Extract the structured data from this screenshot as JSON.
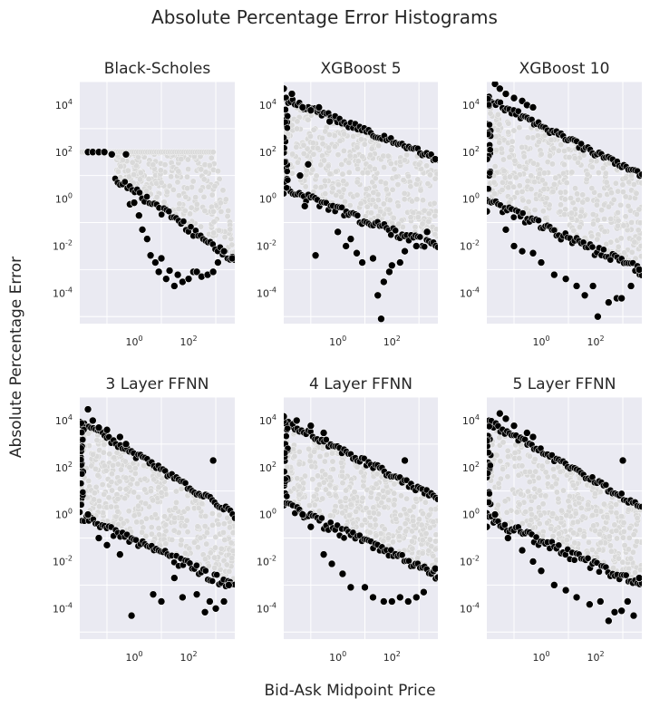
{
  "figure": {
    "title": "Absolute Percentage Error Histograms",
    "xlabel": "Bid-Ask Midpoint Price",
    "ylabel": "Absolute Percentage Error"
  },
  "chart_data": [
    {
      "type": "scatter",
      "title": "Black-Scholes",
      "x_scale": "log",
      "y_scale": "log",
      "xlim": [
        0.01,
        5000
      ],
      "ylim": [
        5e-06,
        100000
      ],
      "x_ticks": [
        "10^0",
        "10^2"
      ],
      "y_ticks": [
        "10^4",
        "10^2",
        "10^0",
        "10^-2",
        "10^-4"
      ],
      "grid": true,
      "shape": "flat",
      "plateau_y": 100,
      "cloud_lower_start_x": 0.2,
      "cloud_lower_start_y": 10,
      "cloud_lower_end_x": 5000,
      "cloud_lower_end_y": 0.003,
      "cloud_upper_end_x": 5000,
      "cloud_upper_end_y": 0.05,
      "outliers": [
        {
          "x": 0.02,
          "y": 100
        },
        {
          "x": 0.03,
          "y": 100
        },
        {
          "x": 0.05,
          "y": 100
        },
        {
          "x": 0.08,
          "y": 100
        },
        {
          "x": 0.15,
          "y": 80
        },
        {
          "x": 0.5,
          "y": 80
        },
        {
          "x": 0.7,
          "y": 0.6
        },
        {
          "x": 1,
          "y": 0.7
        },
        {
          "x": 1.5,
          "y": 0.2
        },
        {
          "x": 2,
          "y": 0.05
        },
        {
          "x": 3,
          "y": 0.02
        },
        {
          "x": 4,
          "y": 0.004
        },
        {
          "x": 6,
          "y": 0.002
        },
        {
          "x": 8,
          "y": 0.0008
        },
        {
          "x": 10,
          "y": 0.003
        },
        {
          "x": 15,
          "y": 0.0004
        },
        {
          "x": 20,
          "y": 0.0009
        },
        {
          "x": 30,
          "y": 0.0002
        },
        {
          "x": 40,
          "y": 0.0006
        },
        {
          "x": 60,
          "y": 0.0003
        },
        {
          "x": 100,
          "y": 0.0004
        },
        {
          "x": 150,
          "y": 0.0008
        },
        {
          "x": 200,
          "y": 0.0008
        },
        {
          "x": 300,
          "y": 0.0005
        },
        {
          "x": 500,
          "y": 0.0006
        },
        {
          "x": 800,
          "y": 0.0008
        },
        {
          "x": 1200,
          "y": 0.002
        },
        {
          "x": 2000,
          "y": 0.006
        },
        {
          "x": 4000,
          "y": 0.003
        }
      ]
    },
    {
      "type": "scatter",
      "title": "XGBoost 5",
      "x_scale": "log",
      "y_scale": "log",
      "xlim": [
        0.01,
        5000
      ],
      "ylim": [
        5e-06,
        100000
      ],
      "x_ticks": [
        "10^0",
        "10^2"
      ],
      "y_ticks": [
        "10^4",
        "10^2",
        "10^0",
        "10^-2",
        "10^-4"
      ],
      "grid": true,
      "shape": "triangle",
      "cloud_upper_start_x": 0.01,
      "cloud_upper_start_y": 20000,
      "cloud_upper_end_x": 5000,
      "cloud_upper_end_y": 50,
      "cloud_lower_start_x": 0.01,
      "cloud_lower_start_y": 3,
      "cloud_lower_end_x": 5000,
      "cloud_lower_end_y": 0.01,
      "outliers": [
        {
          "x": 0.01,
          "y": 50000
        },
        {
          "x": 0.02,
          "y": 30000
        },
        {
          "x": 0.05,
          "y": 8000
        },
        {
          "x": 0.1,
          "y": 6000
        },
        {
          "x": 0.2,
          "y": 8000
        },
        {
          "x": 0.5,
          "y": 2000
        },
        {
          "x": 0.04,
          "y": 10
        },
        {
          "x": 0.06,
          "y": 0.5
        },
        {
          "x": 0.08,
          "y": 30
        },
        {
          "x": 0.15,
          "y": 0.004
        },
        {
          "x": 1,
          "y": 0.04
        },
        {
          "x": 2,
          "y": 0.01
        },
        {
          "x": 3,
          "y": 0.02
        },
        {
          "x": 5,
          "y": 0.005
        },
        {
          "x": 8,
          "y": 0.002
        },
        {
          "x": 20,
          "y": 0.003
        },
        {
          "x": 30,
          "y": 8e-05
        },
        {
          "x": 40,
          "y": 8e-06
        },
        {
          "x": 50,
          "y": 0.0003
        },
        {
          "x": 80,
          "y": 0.0008
        },
        {
          "x": 100,
          "y": 0.0015
        },
        {
          "x": 200,
          "y": 0.002
        },
        {
          "x": 300,
          "y": 0.006
        },
        {
          "x": 800,
          "y": 0.01
        },
        {
          "x": 2000,
          "y": 0.04
        },
        {
          "x": 4000,
          "y": 50
        }
      ]
    },
    {
      "type": "scatter",
      "title": "XGBoost 10",
      "x_scale": "log",
      "y_scale": "log",
      "xlim": [
        0.01,
        5000
      ],
      "ylim": [
        5e-06,
        100000
      ],
      "x_ticks": [
        "10^0",
        "10^2"
      ],
      "y_ticks": [
        "10^4",
        "10^2",
        "10^0",
        "10^-2",
        "10^-4"
      ],
      "grid": true,
      "shape": "triangle",
      "cloud_upper_start_x": 0.01,
      "cloud_upper_start_y": 20000,
      "cloud_upper_end_x": 5000,
      "cloud_upper_end_y": 10,
      "cloud_lower_start_x": 0.01,
      "cloud_lower_start_y": 1,
      "cloud_lower_end_x": 5000,
      "cloud_lower_end_y": 0.001,
      "outliers": [
        {
          "x": 0.02,
          "y": 80000
        },
        {
          "x": 0.03,
          "y": 50000
        },
        {
          "x": 0.05,
          "y": 30000
        },
        {
          "x": 0.1,
          "y": 20000
        },
        {
          "x": 0.2,
          "y": 15000
        },
        {
          "x": 0.3,
          "y": 10000
        },
        {
          "x": 0.5,
          "y": 8000
        },
        {
          "x": 0.01,
          "y": 0.3
        },
        {
          "x": 0.05,
          "y": 0.05
        },
        {
          "x": 0.1,
          "y": 0.01
        },
        {
          "x": 0.2,
          "y": 0.006
        },
        {
          "x": 0.5,
          "y": 0.005
        },
        {
          "x": 1,
          "y": 0.002
        },
        {
          "x": 3,
          "y": 0.0006
        },
        {
          "x": 8,
          "y": 0.0004
        },
        {
          "x": 20,
          "y": 0.0002
        },
        {
          "x": 40,
          "y": 8e-05
        },
        {
          "x": 80,
          "y": 0.0002
        },
        {
          "x": 120,
          "y": 1e-05
        },
        {
          "x": 300,
          "y": 4e-05
        },
        {
          "x": 600,
          "y": 6e-05
        },
        {
          "x": 900,
          "y": 6e-05
        },
        {
          "x": 2000,
          "y": 0.0002
        },
        {
          "x": 4000,
          "y": 0.001
        }
      ]
    },
    {
      "type": "scatter",
      "title": "3 Layer FFNN",
      "x_scale": "log",
      "y_scale": "log",
      "xlim": [
        0.01,
        5000
      ],
      "ylim": [
        5e-06,
        100000
      ],
      "x_ticks": [
        "10^0",
        "10^2"
      ],
      "y_ticks": [
        "10^4",
        "10^2",
        "10^0",
        "10^-2",
        "10^-4"
      ],
      "grid": true,
      "shape": "triangle",
      "cloud_upper_start_x": 0.01,
      "cloud_upper_start_y": 10000,
      "cloud_upper_end_x": 5000,
      "cloud_upper_end_y": 1,
      "cloud_lower_start_x": 0.01,
      "cloud_lower_start_y": 1,
      "cloud_lower_end_x": 5000,
      "cloud_lower_end_y": 0.001,
      "outliers": [
        {
          "x": 0.02,
          "y": 30000
        },
        {
          "x": 0.03,
          "y": 10000
        },
        {
          "x": 0.05,
          "y": 5000
        },
        {
          "x": 0.1,
          "y": 4000
        },
        {
          "x": 0.3,
          "y": 2000
        },
        {
          "x": 0.5,
          "y": 1000
        },
        {
          "x": 0.02,
          "y": 1
        },
        {
          "x": 0.05,
          "y": 0.1
        },
        {
          "x": 0.1,
          "y": 0.05
        },
        {
          "x": 0.3,
          "y": 0.02
        },
        {
          "x": 0.8,
          "y": 5e-05
        },
        {
          "x": 5,
          "y": 0.0004
        },
        {
          "x": 10,
          "y": 0.0002
        },
        {
          "x": 30,
          "y": 0.002
        },
        {
          "x": 60,
          "y": 0.0003
        },
        {
          "x": 200,
          "y": 0.0004
        },
        {
          "x": 400,
          "y": 7e-05
        },
        {
          "x": 600,
          "y": 0.0002
        },
        {
          "x": 1000,
          "y": 0.0001
        },
        {
          "x": 2000,
          "y": 0.0002
        },
        {
          "x": 800,
          "y": 200
        },
        {
          "x": 3000,
          "y": 0.001
        }
      ]
    },
    {
      "type": "scatter",
      "title": "4 Layer FFNN",
      "x_scale": "log",
      "y_scale": "log",
      "xlim": [
        0.01,
        5000
      ],
      "ylim": [
        5e-06,
        100000
      ],
      "x_ticks": [
        "10^0",
        "10^2"
      ],
      "y_ticks": [
        "10^4",
        "10^2",
        "10^0",
        "10^-2",
        "10^-4"
      ],
      "grid": true,
      "shape": "triangle",
      "cloud_upper_start_x": 0.01,
      "cloud_upper_start_y": 10000,
      "cloud_upper_end_x": 5000,
      "cloud_upper_end_y": 5,
      "cloud_lower_start_x": 0.01,
      "cloud_lower_start_y": 3,
      "cloud_lower_end_x": 5000,
      "cloud_lower_end_y": 0.003,
      "outliers": [
        {
          "x": 0.01,
          "y": 15000
        },
        {
          "x": 0.03,
          "y": 10000
        },
        {
          "x": 0.1,
          "y": 6000
        },
        {
          "x": 0.3,
          "y": 3000
        },
        {
          "x": 0.05,
          "y": 1
        },
        {
          "x": 0.1,
          "y": 0.3
        },
        {
          "x": 0.3,
          "y": 0.02
        },
        {
          "x": 0.6,
          "y": 0.008
        },
        {
          "x": 1.5,
          "y": 0.003
        },
        {
          "x": 3,
          "y": 0.0008
        },
        {
          "x": 10,
          "y": 0.0008
        },
        {
          "x": 20,
          "y": 0.0003
        },
        {
          "x": 50,
          "y": 0.0002
        },
        {
          "x": 100,
          "y": 0.0002
        },
        {
          "x": 200,
          "y": 0.0003
        },
        {
          "x": 400,
          "y": 0.0002
        },
        {
          "x": 800,
          "y": 0.0003
        },
        {
          "x": 1500,
          "y": 0.0005
        },
        {
          "x": 300,
          "y": 200
        },
        {
          "x": 4000,
          "y": 0.005
        }
      ]
    },
    {
      "type": "scatter",
      "title": "5 Layer FFNN",
      "x_scale": "log",
      "y_scale": "log",
      "xlim": [
        0.01,
        5000
      ],
      "ylim": [
        5e-06,
        100000
      ],
      "x_ticks": [
        "10^0",
        "10^2"
      ],
      "y_ticks": [
        "10^4",
        "10^2",
        "10^0",
        "10^-2",
        "10^-4"
      ],
      "grid": true,
      "shape": "triangle",
      "cloud_upper_start_x": 0.01,
      "cloud_upper_start_y": 10000,
      "cloud_upper_end_x": 5000,
      "cloud_upper_end_y": 2,
      "cloud_lower_start_x": 0.01,
      "cloud_lower_start_y": 1,
      "cloud_lower_end_x": 5000,
      "cloud_lower_end_y": 0.001,
      "outliers": [
        {
          "x": 0.01,
          "y": 0.3
        },
        {
          "x": 0.03,
          "y": 20000
        },
        {
          "x": 0.05,
          "y": 12000
        },
        {
          "x": 0.1,
          "y": 6000
        },
        {
          "x": 0.3,
          "y": 3000
        },
        {
          "x": 0.5,
          "y": 2000
        },
        {
          "x": 0.02,
          "y": 1
        },
        {
          "x": 0.06,
          "y": 0.1
        },
        {
          "x": 0.2,
          "y": 0.03
        },
        {
          "x": 0.5,
          "y": 0.01
        },
        {
          "x": 1,
          "y": 0.004
        },
        {
          "x": 3,
          "y": 0.001
        },
        {
          "x": 8,
          "y": 0.0006
        },
        {
          "x": 20,
          "y": 0.0003
        },
        {
          "x": 60,
          "y": 0.00015
        },
        {
          "x": 150,
          "y": 0.0002
        },
        {
          "x": 300,
          "y": 3e-05
        },
        {
          "x": 500,
          "y": 7e-05
        },
        {
          "x": 900,
          "y": 8e-05
        },
        {
          "x": 1500,
          "y": 0.0002
        },
        {
          "x": 2500,
          "y": 5e-05
        },
        {
          "x": 1000,
          "y": 200
        },
        {
          "x": 4000,
          "y": 0.002
        }
      ]
    }
  ]
}
